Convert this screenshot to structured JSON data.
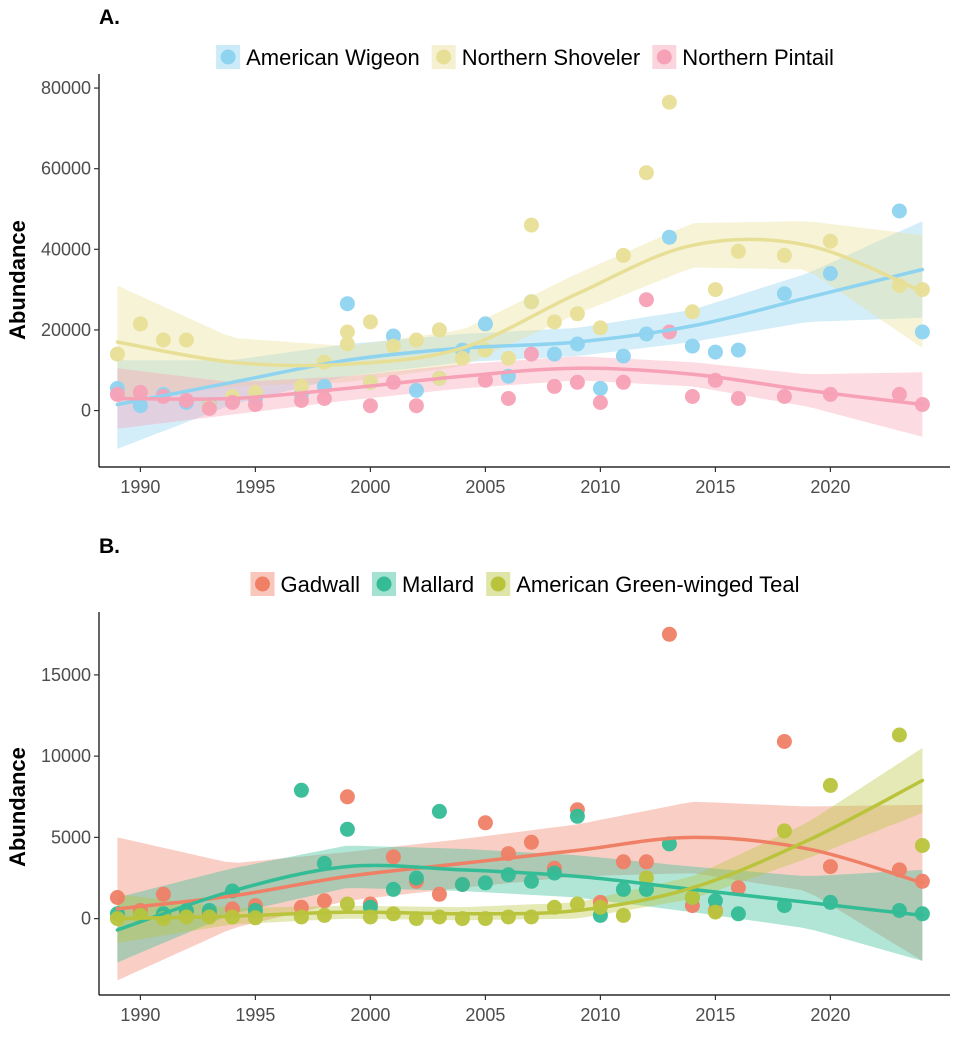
{
  "chart_data": [
    {
      "panel": "A.",
      "type": "scatter",
      "ylabel": "Abundance",
      "xlim": [
        1988.2,
        2025.2
      ],
      "ylim": [
        -14000,
        82000
      ],
      "xticks": [
        1990,
        1995,
        2000,
        2005,
        2010,
        2015,
        2020
      ],
      "yticks": [
        0,
        20000,
        40000,
        60000,
        80000
      ],
      "legend": "top",
      "grid": false,
      "series": [
        {
          "name": "American Wigeon",
          "color": "#8ed3f0",
          "points": [
            [
              1989,
              5500
            ],
            [
              1990,
              1200
            ],
            [
              1991,
              4000
            ],
            [
              1992,
              2000
            ],
            [
              1993,
              1500
            ],
            [
              1994,
              2500
            ],
            [
              1995,
              3000
            ],
            [
              1997,
              4000
            ],
            [
              1998,
              6000
            ],
            [
              1999,
              26500
            ],
            [
              2000,
              7000
            ],
            [
              2001,
              18500
            ],
            [
              2002,
              5000
            ],
            [
              2003,
              8000
            ],
            [
              2004,
              15000
            ],
            [
              2005,
              21500
            ],
            [
              2006,
              8500
            ],
            [
              2007,
              27000
            ],
            [
              2008,
              14000
            ],
            [
              2009,
              16500
            ],
            [
              2010,
              5500
            ],
            [
              2011,
              13500
            ],
            [
              2012,
              19000
            ],
            [
              2013,
              43000
            ],
            [
              2014,
              16000
            ],
            [
              2015,
              14500
            ],
            [
              2016,
              15000
            ],
            [
              2018,
              29000
            ],
            [
              2020,
              34000
            ],
            [
              2023,
              49500
            ],
            [
              2024,
              19500
            ]
          ],
          "trend": [
            [
              1989,
              1500
            ],
            [
              1994,
              7000
            ],
            [
              1999,
              12500
            ],
            [
              2004,
              15500
            ],
            [
              2009,
              17000
            ],
            [
              2014,
              21000
            ],
            [
              2019,
              28000
            ],
            [
              2024,
              35000
            ]
          ],
          "ci_halfwidth": [
            11000,
            5500,
            4000,
            3500,
            3500,
            4000,
            6000,
            12000
          ]
        },
        {
          "name": "Northern Shoveler",
          "color": "#e8df96",
          "points": [
            [
              1989,
              14000
            ],
            [
              1990,
              21500
            ],
            [
              1991,
              17500
            ],
            [
              1992,
              17500
            ],
            [
              1993,
              1000
            ],
            [
              1994,
              3500
            ],
            [
              1995,
              4500
            ],
            [
              1997,
              6000
            ],
            [
              1998,
              12000
            ],
            [
              1999,
              16500
            ],
            [
              1999,
              19500
            ],
            [
              2000,
              22000
            ],
            [
              2000,
              7000
            ],
            [
              2001,
              16000
            ],
            [
              2002,
              17500
            ],
            [
              2003,
              20000
            ],
            [
              2003,
              8000
            ],
            [
              2004,
              13000
            ],
            [
              2005,
              15000
            ],
            [
              2006,
              13000
            ],
            [
              2007,
              46000
            ],
            [
              2007,
              27000
            ],
            [
              2008,
              22000
            ],
            [
              2009,
              24000
            ],
            [
              2010,
              20500
            ],
            [
              2011,
              38500
            ],
            [
              2012,
              59000
            ],
            [
              2013,
              76500
            ],
            [
              2014,
              24500
            ],
            [
              2015,
              30000
            ],
            [
              2016,
              39500
            ],
            [
              2018,
              38500
            ],
            [
              2020,
              42000
            ],
            [
              2023,
              31000
            ],
            [
              2024,
              30000
            ]
          ],
          "trend": [
            [
              1989,
              17000
            ],
            [
              1994,
              12000
            ],
            [
              1999,
              11500
            ],
            [
              2004,
              15500
            ],
            [
              2009,
              29000
            ],
            [
              2014,
              41000
            ],
            [
              2019,
              41000
            ],
            [
              2024,
              29500
            ]
          ],
          "ci_halfwidth": [
            14000,
            6000,
            4500,
            4500,
            5000,
            5500,
            6000,
            14000
          ]
        },
        {
          "name": "Northern Pintail",
          "color": "#f7a1b6",
          "points": [
            [
              1989,
              4000
            ],
            [
              1990,
              4500
            ],
            [
              1991,
              3500
            ],
            [
              1992,
              2500
            ],
            [
              1993,
              500
            ],
            [
              1994,
              2000
            ],
            [
              1995,
              1500
            ],
            [
              1997,
              2500
            ],
            [
              1998,
              3000
            ],
            [
              2000,
              1200
            ],
            [
              2001,
              7000
            ],
            [
              2002,
              1200
            ],
            [
              2005,
              7500
            ],
            [
              2006,
              3000
            ],
            [
              2007,
              14000
            ],
            [
              2008,
              6000
            ],
            [
              2009,
              7000
            ],
            [
              2010,
              2000
            ],
            [
              2011,
              7000
            ],
            [
              2012,
              27500
            ],
            [
              2013,
              19500
            ],
            [
              2014,
              3500
            ],
            [
              2015,
              7500
            ],
            [
              2016,
              3000
            ],
            [
              2018,
              3500
            ],
            [
              2020,
              4000
            ],
            [
              2023,
              4000
            ],
            [
              2024,
              1500
            ]
          ],
          "trend": [
            [
              1989,
              3000
            ],
            [
              1994,
              3000
            ],
            [
              1999,
              5500
            ],
            [
              2004,
              8500
            ],
            [
              2009,
              10500
            ],
            [
              2014,
              9000
            ],
            [
              2019,
              5000
            ],
            [
              2024,
              1500
            ]
          ],
          "ci_halfwidth": [
            7500,
            4000,
            3000,
            3000,
            3000,
            3000,
            4000,
            8000
          ]
        }
      ]
    },
    {
      "panel": "B.",
      "type": "scatter",
      "ylabel": "Abundance",
      "xlim": [
        1988.2,
        2025.2
      ],
      "ylim": [
        -4700,
        18500
      ],
      "xticks": [
        1990,
        1995,
        2000,
        2005,
        2010,
        2015,
        2020
      ],
      "yticks": [
        0,
        5000,
        10000,
        15000
      ],
      "legend": "top",
      "grid": false,
      "series": [
        {
          "name": "Gadwall",
          "color": "#ef8066",
          "points": [
            [
              1989,
              1300
            ],
            [
              1990,
              500
            ],
            [
              1991,
              1500
            ],
            [
              1992,
              400
            ],
            [
              1993,
              300
            ],
            [
              1994,
              600
            ],
            [
              1995,
              800
            ],
            [
              1997,
              700
            ],
            [
              1998,
              1100
            ],
            [
              1999,
              7500
            ],
            [
              2000,
              900
            ],
            [
              2001,
              3800
            ],
            [
              2002,
              2300
            ],
            [
              2003,
              1500
            ],
            [
              2004,
              2100
            ],
            [
              2005,
              5900
            ],
            [
              2006,
              4000
            ],
            [
              2007,
              4700
            ],
            [
              2008,
              3100
            ],
            [
              2009,
              6700
            ],
            [
              2010,
              1000
            ],
            [
              2011,
              3500
            ],
            [
              2012,
              3500
            ],
            [
              2013,
              17500
            ],
            [
              2014,
              800
            ],
            [
              2015,
              500
            ],
            [
              2016,
              1900
            ],
            [
              2018,
              10900
            ],
            [
              2020,
              3200
            ],
            [
              2023,
              3000
            ],
            [
              2024,
              2300
            ]
          ],
          "trend": [
            [
              1989,
              600
            ],
            [
              1994,
              1400
            ],
            [
              1999,
              2600
            ],
            [
              2004,
              3400
            ],
            [
              2009,
              4200
            ],
            [
              2014,
              5000
            ],
            [
              2019,
              4300
            ],
            [
              2024,
              2200
            ]
          ],
          "ci_halfwidth": [
            4400,
            2000,
            1500,
            1500,
            1600,
            2200,
            2600,
            4800
          ]
        },
        {
          "name": "Mallard",
          "color": "#33bc96",
          "points": [
            [
              1989,
              300
            ],
            [
              1990,
              200
            ],
            [
              1991,
              300
            ],
            [
              1992,
              500
            ],
            [
              1993,
              500
            ],
            [
              1994,
              1700
            ],
            [
              1995,
              500
            ],
            [
              1997,
              7900
            ],
            [
              1998,
              3400
            ],
            [
              1999,
              5500
            ],
            [
              2000,
              700
            ],
            [
              2001,
              1800
            ],
            [
              2002,
              2500
            ],
            [
              2003,
              6600
            ],
            [
              2004,
              2100
            ],
            [
              2005,
              2200
            ],
            [
              2006,
              2700
            ],
            [
              2007,
              2300
            ],
            [
              2008,
              2800
            ],
            [
              2009,
              6300
            ],
            [
              2010,
              200
            ],
            [
              2011,
              1800
            ],
            [
              2012,
              1800
            ],
            [
              2013,
              4600
            ],
            [
              2014,
              1300
            ],
            [
              2015,
              1100
            ],
            [
              2016,
              300
            ],
            [
              2018,
              800
            ],
            [
              2020,
              1000
            ],
            [
              2023,
              500
            ],
            [
              2024,
              300
            ]
          ],
          "trend": [
            [
              1989,
              -700
            ],
            [
              1994,
              1700
            ],
            [
              1999,
              3200
            ],
            [
              2004,
              3000
            ],
            [
              2009,
              2600
            ],
            [
              2014,
              1800
            ],
            [
              2019,
              1000
            ],
            [
              2024,
              200
            ]
          ],
          "ci_halfwidth": [
            2000,
            1400,
            1300,
            1300,
            1300,
            1400,
            1600,
            2800
          ]
        },
        {
          "name": "American Green-winged Teal",
          "color": "#b9c43c",
          "points": [
            [
              1989,
              0
            ],
            [
              1990,
              200
            ],
            [
              1991,
              0
            ],
            [
              1992,
              100
            ],
            [
              1993,
              100
            ],
            [
              1994,
              100
            ],
            [
              1995,
              50
            ],
            [
              1997,
              100
            ],
            [
              1998,
              200
            ],
            [
              1999,
              900
            ],
            [
              2000,
              100
            ],
            [
              2001,
              300
            ],
            [
              2002,
              0
            ],
            [
              2003,
              100
            ],
            [
              2004,
              0
            ],
            [
              2005,
              0
            ],
            [
              2006,
              100
            ],
            [
              2007,
              100
            ],
            [
              2008,
              700
            ],
            [
              2009,
              900
            ],
            [
              2010,
              700
            ],
            [
              2011,
              200
            ],
            [
              2012,
              2500
            ],
            [
              2014,
              1300
            ],
            [
              2015,
              400
            ],
            [
              2018,
              5400
            ],
            [
              2020,
              8200
            ],
            [
              2023,
              11300
            ],
            [
              2024,
              4500
            ]
          ],
          "trend": [
            [
              1989,
              0
            ],
            [
              1994,
              150
            ],
            [
              1999,
              400
            ],
            [
              2004,
              300
            ],
            [
              2009,
              500
            ],
            [
              2014,
              1900
            ],
            [
              2019,
              4800
            ],
            [
              2024,
              8500
            ]
          ],
          "ci_halfwidth": [
            1500,
            500,
            400,
            400,
            500,
            700,
            1100,
            2000
          ]
        }
      ]
    }
  ]
}
